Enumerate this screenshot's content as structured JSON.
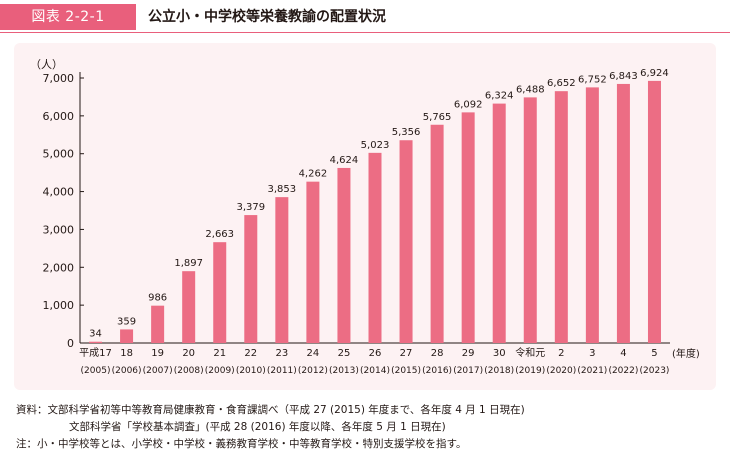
{
  "figure": {
    "label": "図表 2-2-1",
    "title": "公立小・中学校等栄養教諭の配置状況"
  },
  "chart_data": {
    "type": "bar",
    "ylabel": "（人）",
    "xlabel": "(年度)",
    "ylim": [
      0,
      7000
    ],
    "yticks": [
      "0",
      "1,000",
      "2,000",
      "3,000",
      "4,000",
      "5,000",
      "6,000",
      "7,000"
    ],
    "ytick_values": [
      0,
      1000,
      2000,
      3000,
      4000,
      5000,
      6000,
      7000
    ],
    "categories": [
      "平成17",
      "18",
      "19",
      "20",
      "21",
      "22",
      "23",
      "24",
      "25",
      "26",
      "27",
      "28",
      "29",
      "30",
      "令和元",
      "2",
      "3",
      "4",
      "5"
    ],
    "categories_sub": [
      "(2005)",
      "(2006)",
      "(2007)",
      "(2008)",
      "(2009)",
      "(2010)",
      "(2011)",
      "(2012)",
      "(2013)",
      "(2014)",
      "(2015)",
      "(2016)",
      "(2017)",
      "(2018)",
      "(2019)",
      "(2020)",
      "(2021)",
      "(2022)",
      "(2023)"
    ],
    "values": [
      34,
      359,
      986,
      1897,
      2663,
      3379,
      3853,
      4262,
      4624,
      5023,
      5356,
      5765,
      6092,
      6324,
      6488,
      6652,
      6752,
      6843,
      6924
    ],
    "value_labels": [
      "34",
      "359",
      "986",
      "1,897",
      "2,663",
      "3,379",
      "3,853",
      "4,262",
      "4,624",
      "5,023",
      "5,356",
      "5,765",
      "6,092",
      "6,324",
      "6,488",
      "6,652",
      "6,752",
      "6,843",
      "6,924"
    ],
    "bar_color": "#ec6d84",
    "grid": false
  },
  "notes": {
    "line1": "資料：文部科学省初等中等教育局健康教育・食育課調べ（平成 27 (2015) 年度まで、各年度 4 月 1 日現在)",
    "line2": "文部科学省「学校基本調査」(平成 28 (2016) 年度以降、各年度 5 月 1 日現在)",
    "line3": "注：小・中学校等とは、小学校・中学校・義務教育学校・中等教育学校・特別支援学校を指す。"
  }
}
